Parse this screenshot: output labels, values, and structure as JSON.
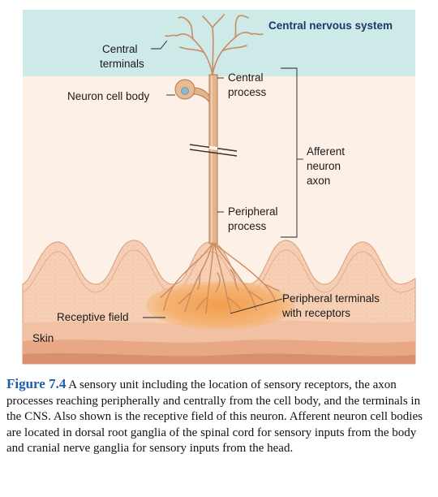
{
  "labels": {
    "cns": "Central nervous system",
    "central_terminals_1": "Central",
    "central_terminals_2": "terminals",
    "cell_body": "Neuron cell body",
    "central_process_1": "Central",
    "central_process_2": "process",
    "afferent_1": "Afferent",
    "afferent_2": "neuron",
    "afferent_3": "axon",
    "peripheral_process_1": "Peripheral",
    "peripheral_process_2": "process",
    "peripheral_terminals_1": "Peripheral terminals",
    "peripheral_terminals_2": "with receptors",
    "receptive_field": "Receptive field",
    "skin": "Skin"
  },
  "caption": {
    "figure_number": "Figure 7.4",
    "text": "A sensory unit including the location of sensory receptors, the axon processes reaching peripherally and centrally from the cell body, and the terminals in the CNS. Also shown is the receptive field of this neuron. Afferent neuron cell bodies are located in dorsal root ganglia of the spinal cord for sensory inputs from the body and cranial nerve ganglia for sensory inputs from the head."
  },
  "colors": {
    "cns_background": "#cde9e8",
    "skin_background": "#fbe9dc",
    "neuron": "#e3b38a",
    "neuron_outline": "#b2784d",
    "receptive_field": "#f4a55a",
    "figure_number": "#1f5fa8"
  }
}
